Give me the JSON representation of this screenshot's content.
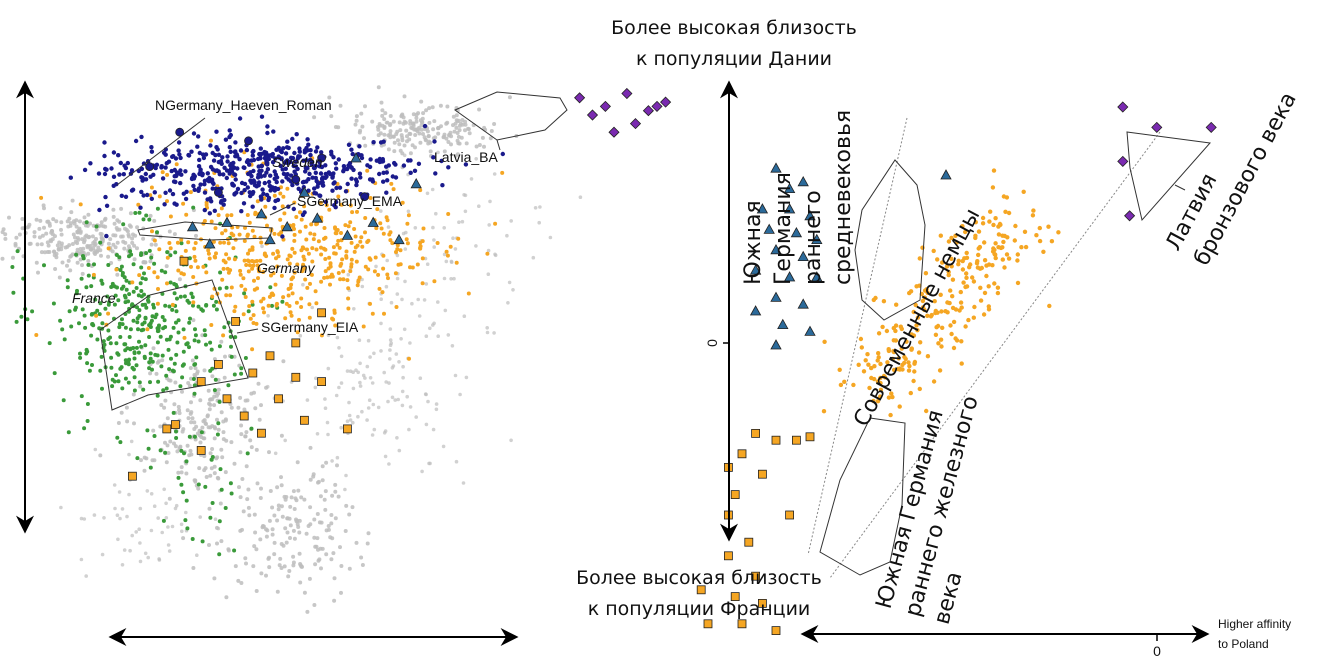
{
  "colors": {
    "background": "#bdbdbd",
    "navy": "#1a1a8c",
    "teal": "#2b6a9a",
    "orange": "#f5a623",
    "green": "#3a9a3a",
    "purple": "#7a2ab0",
    "axis": "#000000"
  },
  "chart_data": [
    {
      "type": "scatter",
      "panel": "left",
      "title": "",
      "xlabel": "",
      "ylabel": "",
      "axis_arrows": {
        "vertical": "double",
        "horizontal": "double"
      },
      "series": [
        {
          "name": "NGermany_Haeven_Roman",
          "marker": "circle",
          "color": "navy",
          "points": [
            [
              -0.028,
              0.038
            ],
            [
              -0.021,
              0.046
            ],
            [
              -0.005,
              0.044
            ],
            [
              0.012,
              0.04
            ],
            [
              0.006,
              0.035
            ],
            [
              -0.012,
              0.032
            ],
            [
              0.022,
              0.031
            ]
          ]
        },
        {
          "name": "Sweden",
          "marker": "dot-cloud",
          "color": "navy"
        },
        {
          "name": "SGermany_EMA",
          "marker": "triangle",
          "color": "teal",
          "points": [
            [
              -0.018,
              0.024
            ],
            [
              -0.01,
              0.025
            ],
            [
              -0.002,
              0.027
            ],
            [
              0.004,
              0.024
            ],
            [
              0.011,
              0.026
            ],
            [
              0.018,
              0.022
            ],
            [
              0.024,
              0.025
            ],
            [
              -0.014,
              0.02
            ],
            [
              0.0,
              0.021
            ],
            [
              0.03,
              0.021
            ],
            [
              0.02,
              0.04
            ],
            [
              0.034,
              0.034
            ],
            [
              0.008,
              0.032
            ]
          ]
        },
        {
          "name": "Latvia_BA",
          "marker": "diamond",
          "color": "purple",
          "points": [
            [
              0.072,
              0.054
            ],
            [
              0.078,
              0.052
            ],
            [
              0.083,
              0.055
            ],
            [
              0.088,
              0.051
            ],
            [
              0.09,
              0.052
            ],
            [
              0.085,
              0.048
            ],
            [
              0.08,
              0.046
            ],
            [
              0.092,
              0.053
            ],
            [
              0.075,
              0.05
            ]
          ]
        },
        {
          "name": "Germany",
          "marker": "dot-cloud",
          "color": "orange"
        },
        {
          "name": "France",
          "marker": "dot-cloud",
          "color": "green"
        },
        {
          "name": "SGermany_EIA",
          "marker": "square",
          "color": "orange",
          "points": [
            [
              -0.02,
              0.016
            ],
            [
              0.012,
              0.004
            ],
            [
              -0.008,
              0.002
            ],
            [
              0.006,
              -0.003
            ],
            [
              0.0,
              -0.006
            ],
            [
              -0.012,
              -0.008
            ],
            [
              -0.004,
              -0.01
            ],
            [
              0.006,
              -0.011
            ],
            [
              0.012,
              -0.012
            ],
            [
              -0.016,
              -0.012
            ],
            [
              -0.01,
              -0.016
            ],
            [
              0.002,
              -0.016
            ],
            [
              -0.006,
              -0.02
            ],
            [
              0.008,
              -0.021
            ],
            [
              -0.024,
              -0.023
            ],
            [
              0.018,
              -0.023
            ],
            [
              -0.016,
              -0.028
            ],
            [
              -0.032,
              -0.034
            ],
            [
              -0.022,
              -0.022
            ],
            [
              -0.002,
              -0.024
            ]
          ]
        }
      ],
      "annotations": [
        "NGermany_Haeven_Roman",
        "Sweden",
        "Latvia_BA",
        "SGermany_EMA",
        "Germany",
        "France",
        "SGermany_EIA"
      ]
    },
    {
      "type": "scatter",
      "panel": "right",
      "title": "",
      "xlabel": "Higher affinity to Poland",
      "ylabel_top": "Более высокая близость к популяции Дании",
      "ylabel_bottom": "Более высокая близость к популяции Франции",
      "x_ticks": [
        "0"
      ],
      "y_ticks": [
        "0"
      ],
      "series": [
        {
          "name": "Южная Германия раннего средневековья",
          "marker": "triangle",
          "color": "teal",
          "points": [
            [
              -0.04,
              0.052
            ],
            [
              -0.036,
              0.046
            ],
            [
              -0.032,
              0.048
            ],
            [
              -0.044,
              0.04
            ],
            [
              -0.036,
              0.04
            ],
            [
              -0.03,
              0.038
            ],
            [
              -0.042,
              0.034
            ],
            [
              -0.034,
              0.033
            ],
            [
              -0.028,
              0.031
            ],
            [
              -0.04,
              0.028
            ],
            [
              -0.032,
              0.026
            ],
            [
              -0.046,
              0.022
            ],
            [
              -0.036,
              0.02
            ],
            [
              -0.028,
              0.02
            ],
            [
              -0.04,
              0.014
            ],
            [
              -0.032,
              0.012
            ],
            [
              -0.046,
              0.01
            ],
            [
              -0.038,
              0.006
            ],
            [
              -0.03,
              0.004
            ],
            [
              -0.04,
              0.0
            ],
            [
              0.01,
              0.05
            ]
          ]
        },
        {
          "name": "Латвия бронзового века",
          "marker": "diamond",
          "color": "purple",
          "points": [
            [
              0.062,
              0.07
            ],
            [
              0.072,
              0.064
            ],
            [
              0.088,
              0.064
            ],
            [
              0.062,
              0.054
            ],
            [
              0.064,
              0.038
            ]
          ]
        },
        {
          "name": "Современные немцы",
          "marker": "dot-cloud",
          "color": "orange"
        },
        {
          "name": "Южная Германия раннего железного века",
          "marker": "square",
          "color": "orange",
          "points": [
            [
              -0.046,
              -0.026
            ],
            [
              -0.04,
              -0.028
            ],
            [
              -0.034,
              -0.028
            ],
            [
              -0.03,
              -0.027
            ],
            [
              -0.054,
              -0.036
            ],
            [
              -0.05,
              -0.032
            ],
            [
              -0.044,
              -0.038
            ],
            [
              -0.052,
              -0.044
            ],
            [
              -0.054,
              -0.05
            ],
            [
              -0.048,
              -0.058
            ],
            [
              -0.036,
              -0.05
            ],
            [
              -0.054,
              -0.062
            ],
            [
              -0.046,
              -0.068
            ],
            [
              -0.062,
              -0.072
            ],
            [
              -0.052,
              -0.074
            ],
            [
              -0.044,
              -0.076
            ],
            [
              -0.06,
              -0.082
            ],
            [
              -0.05,
              -0.082
            ],
            [
              -0.04,
              -0.084
            ]
          ]
        }
      ],
      "annotations": [
        "Южная Германия раннего средневековья",
        "Латвия бронзового века",
        "Современные немцы",
        "Южная Германия раннего железного века"
      ]
    }
  ]
}
